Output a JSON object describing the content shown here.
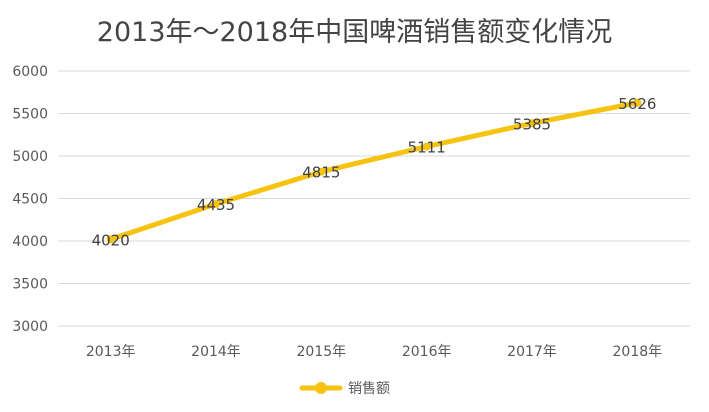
{
  "chart_data": {
    "type": "line",
    "title": "2013年～2018年中国啤酒销售额变化情况",
    "categories": [
      "2013年",
      "2014年",
      "2015年",
      "2016年",
      "2017年",
      "2018年"
    ],
    "series": [
      {
        "name": "销售额",
        "values": [
          4020,
          4435,
          4815,
          5111,
          5385,
          5626
        ]
      }
    ],
    "ylim": [
      3000,
      6000
    ],
    "yticks": [
      3000,
      3500,
      4000,
      4500,
      5000,
      5500,
      6000
    ],
    "grid": true,
    "legend": "bottom",
    "colors": {
      "line": "#F6C311",
      "grid": "#D9D9D9",
      "text": "#595959"
    }
  }
}
